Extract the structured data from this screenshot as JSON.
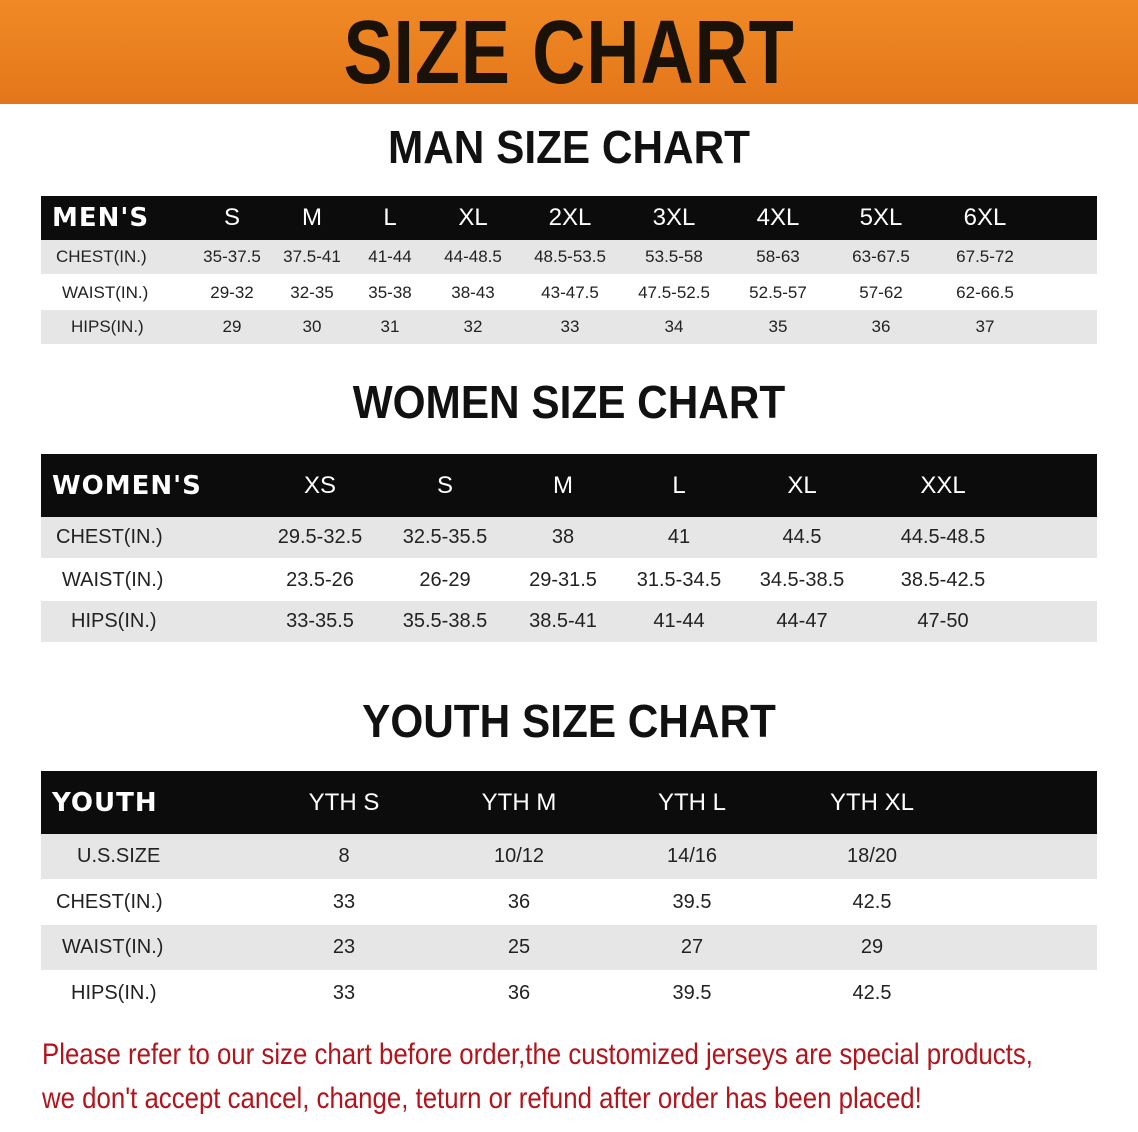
{
  "banner": {
    "title": "SIZE CHART",
    "color": "#e87d1e"
  },
  "men": {
    "title": "MAN SIZE CHART",
    "header": "MEN'S",
    "sizes": [
      "S",
      "M",
      "L",
      "XL",
      "2XL",
      "3XL",
      "4XL",
      "5XL",
      "6XL"
    ],
    "rows": [
      {
        "label": "CHEST(IN.)",
        "values": [
          "35-37.5",
          "37.5-41",
          "41-44",
          "44-48.5",
          "48.5-53.5",
          "53.5-58",
          "58-63",
          "63-67.5",
          "67.5-72"
        ]
      },
      {
        "label": "WAIST(IN.)",
        "values": [
          "29-32",
          "32-35",
          "35-38",
          "38-43",
          "43-47.5",
          "47.5-52.5",
          "52.5-57",
          "57-62",
          "62-66.5"
        ]
      },
      {
        "label": "HIPS(IN.)",
        "values": [
          "29",
          "30",
          "31",
          "32",
          "33",
          "34",
          "35",
          "36",
          "37"
        ]
      }
    ]
  },
  "women": {
    "title": "WOMEN SIZE CHART",
    "header": "WOMEN'S",
    "sizes": [
      "XS",
      "S",
      "M",
      "L",
      "XL",
      "XXL"
    ],
    "rows": [
      {
        "label": "CHEST(IN.)",
        "values": [
          "29.5-32.5",
          "32.5-35.5",
          "38",
          "41",
          "44.5",
          "44.5-48.5"
        ]
      },
      {
        "label": "WAIST(IN.)",
        "values": [
          "23.5-26",
          "26-29",
          "29-31.5",
          "31.5-34.5",
          "34.5-38.5",
          "38.5-42.5"
        ]
      },
      {
        "label": "HIPS(IN.)",
        "values": [
          "33-35.5",
          "35.5-38.5",
          "38.5-41",
          "41-44",
          "44-47",
          "47-50"
        ]
      }
    ]
  },
  "youth": {
    "title": "YOUTH SIZE CHART",
    "header": "YOUTH",
    "sizes": [
      "YTH S",
      "YTH M",
      "YTH L",
      "YTH XL"
    ],
    "rows": [
      {
        "label": "U.S.SIZE",
        "values": [
          "8",
          "10/12",
          "14/16",
          "18/20"
        ]
      },
      {
        "label": "CHEST(IN.)",
        "values": [
          "33",
          "36",
          "39.5",
          "42.5"
        ]
      },
      {
        "label": "WAIST(IN.)",
        "values": [
          "23",
          "25",
          "27",
          "29"
        ]
      },
      {
        "label": "HIPS(IN.)",
        "values": [
          "33",
          "36",
          "39.5",
          "42.5"
        ]
      }
    ]
  },
  "notice": {
    "line1": "Please refer to our size chart before order,the customized jerseys are special products,",
    "line2": "we don't accept cancel, change, teturn or refund after order has been placed!",
    "color": "#b3141c"
  }
}
